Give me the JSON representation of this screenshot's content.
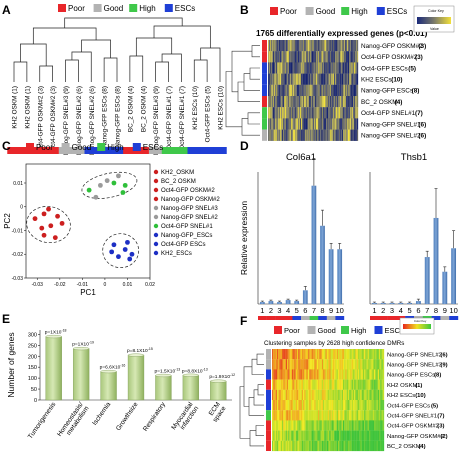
{
  "panels": {
    "A": {
      "letter": "A",
      "legend": [
        {
          "label": "Poor",
          "color": "#e8262a"
        },
        {
          "label": "Good",
          "color": "#b3b3b3"
        },
        {
          "label": "High",
          "color": "#3fc84a"
        },
        {
          "label": "ESCs",
          "color": "#1f3fd6"
        }
      ],
      "leaves": [
        "KH2 OSKM",
        "KH2 OSKM",
        "Oct4-GFP OSKM#2",
        "Oct4-GFP OSKM#2",
        "Nanog-GFP SNEL#3",
        "Nanog-GFP SNEL#2",
        "Nanog-GFP SNEL#2",
        "Nanog-GFP ESCs",
        "Nanog-GFP ESCs",
        "BC_2 OSKM",
        "BC_2 OSKM",
        "Nanog-GFP SNEL#3",
        "Oct4-GFP SNEL#1",
        "Oct4-GFP SNEL#1",
        "KH2 ESCs",
        "Oct4-GFP ESCs",
        "KH2 ESCs"
      ],
      "leaf_numbers": [
        "(1)",
        "(1)",
        "(3)",
        "(3)",
        "(9)",
        "(6)",
        "(6)",
        "(8)",
        "(8)",
        "(4)",
        "(4)",
        "(9)",
        "(7)",
        "(7)",
        "(10)",
        "(5)",
        "(10)"
      ],
      "bar_colors": [
        "#e8262a",
        "#e8262a",
        "#e8262a",
        "#e8262a",
        "#b3b3b3",
        "#b3b3b3",
        "#1f3fd6",
        "#1f3fd6",
        "#1f3fd6",
        "#e8262a",
        "#e8262a",
        "#b3b3b3",
        "#3fc84a",
        "#3fc84a",
        "#1f3fd6",
        "#1f3fd6",
        "#1f3fd6"
      ]
    },
    "B": {
      "letter": "B",
      "legend": [
        {
          "label": "Poor",
          "color": "#e8262a"
        },
        {
          "label": "Good",
          "color": "#b3b3b3"
        },
        {
          "label": "High",
          "color": "#3fc84a"
        },
        {
          "label": "ESCs",
          "color": "#1f3fd6"
        }
      ],
      "title": "1765 differentially expressed genes (p<0.01)",
      "colorkey_title": "Color Key",
      "colorkey_axis": "Value",
      "rows": [
        {
          "label": "Nanog-GFP OSKM#2",
          "num": "(3)",
          "color": "#e8262a"
        },
        {
          "label": "Oct4-GFP OSKM#2",
          "num": "(3)",
          "color": "#e8262a"
        },
        {
          "label": "Oct4-GFP ESCs",
          "num": "(5)",
          "color": "#1f3fd6"
        },
        {
          "label": "KH2 ESCs",
          "num": "(10)",
          "color": "#1f3fd6"
        },
        {
          "label": "Nanog-GFP ESCs",
          "num": "(8)",
          "color": "#1f3fd6"
        },
        {
          "label": "BC_2 OSKM",
          "num": "(4)",
          "color": "#e8262a"
        },
        {
          "label": "Oct4-GFP SNEL#1",
          "num": "(7)",
          "color": "#3fc84a"
        },
        {
          "label": "Nanog-GFP SNEL#1",
          "num": "(6)",
          "color": "#3fc84a"
        },
        {
          "label": "Nanog-GFP SNEL#2",
          "num": "(6)",
          "color": "#b3b3b3"
        }
      ]
    },
    "C": {
      "letter": "C",
      "legend": [
        {
          "label": "Poor",
          "color": "#e8262a"
        },
        {
          "label": "Good",
          "color": "#b3b3b3"
        },
        {
          "label": "High",
          "color": "#3fc84a"
        },
        {
          "label": "ESCs",
          "color": "#1f3fd6"
        }
      ],
      "key": [
        {
          "label": "KH2_OSKM",
          "color": "#cc1f1f"
        },
        {
          "label": "BC_2 OSKM",
          "color": "#cc1f1f"
        },
        {
          "label": "Oct4-GFP OSKM#2",
          "color": "#cc1f1f"
        },
        {
          "label": "Nanog-GFP OSKM#2",
          "color": "#cc1f1f"
        },
        {
          "label": "Nanog-GFP SNEL#3",
          "color": "#9a9a9a"
        },
        {
          "label": "Nanog-GFP SNEL#2",
          "color": "#9a9a9a"
        },
        {
          "label": "Oct4-GFP SNEL#1",
          "color": "#2fbf3a"
        },
        {
          "label": "Nanog-GFP_ESCs",
          "color": "#1d2fc4"
        },
        {
          "label": "Oct4-GFP ESCs",
          "color": "#1d2fc4"
        },
        {
          "label": "KH2_ESCs",
          "color": "#1d2fc4"
        }
      ]
    },
    "D": {
      "letter": "D",
      "legend": [
        {
          "label": "Poor",
          "color": "#e8262a"
        },
        {
          "label": "Good",
          "color": "#b3b3b3"
        },
        {
          "label": "High",
          "color": "#3fc84a"
        },
        {
          "label": "ESCs",
          "color": "#1f3fd6"
        }
      ],
      "category_colors": [
        "#e8262a",
        "#e8262a",
        "#e8262a",
        "#e8262a",
        "#1f3fd6",
        "#b3b3b3",
        "#3fc84a",
        "#1f3fd6",
        "#b3b3b3",
        "#1f3fd6"
      ]
    },
    "E": {
      "letter": "E",
      "legend": [
        {
          "label": "Poor",
          "color": "#e8262a"
        },
        {
          "label": "Good",
          "color": "#b3b3b3"
        },
        {
          "label": "High",
          "color": "#3fc84a"
        },
        {
          "label": "ESCs",
          "color": "#1f3fd6"
        }
      ]
    },
    "F": {
      "letter": "F",
      "legend": [
        {
          "label": "Poor",
          "color": "#e8262a"
        },
        {
          "label": "Good",
          "color": "#b3b3b3"
        },
        {
          "label": "High",
          "color": "#3fc84a"
        },
        {
          "label": "ESCs",
          "color": "#1f3fd6"
        }
      ],
      "title": "Clustering samples by 2628 high confidence DMRs",
      "colorkey_title": "Color Key",
      "rows": [
        {
          "label": "Nanog-GFP SNEL#2",
          "num": "(6)",
          "color": "#b3b3b3"
        },
        {
          "label": "Nanog-GFP SNEL#3",
          "num": "(9)",
          "color": "#b3b3b3"
        },
        {
          "label": "Nanog-GFP ESCs",
          "num": "(8)",
          "color": "#1f3fd6"
        },
        {
          "label": "KH2 OSKM",
          "num": "(1)",
          "color": "#e8262a"
        },
        {
          "label": "KH2 ESCs",
          "num": "(10)",
          "color": "#1f3fd6"
        },
        {
          "label": "Oct4-GFP ESCs",
          "num": "(5)",
          "color": "#1f3fd6"
        },
        {
          "label": "Oct4-GFP SNEL#1",
          "num": "(7)",
          "color": "#3fc84a"
        },
        {
          "label": "Oct4-GFP OSKM#2",
          "num": "(3)",
          "color": "#e8262a"
        },
        {
          "label": "Nanog-GFP OSKM#2",
          "num": "(2)",
          "color": "#e8262a"
        },
        {
          "label": "BC_2 OSKM",
          "num": "(4)",
          "color": "#e8262a"
        }
      ]
    }
  },
  "chart_data": [
    {
      "type": "scatter",
      "id": "C",
      "xlabel": "PC1",
      "ylabel": "PC2",
      "xlim": [
        -0.035,
        0.02
      ],
      "ylim": [
        -0.03,
        0.018
      ],
      "xticks": [
        "-0.03",
        "-0.02",
        "-0.01",
        "0",
        "0.01",
        "0.02"
      ],
      "yticks": [
        "-0.03",
        "-0.02",
        "-0.01",
        "0",
        "0.01"
      ],
      "series": [
        {
          "name": "Poor",
          "color": "#cc1f1f",
          "points": [
            [
              -0.031,
              -0.005
            ],
            [
              -0.027,
              -0.003
            ],
            [
              -0.025,
              -0.001
            ],
            [
              -0.024,
              -0.008
            ],
            [
              -0.027,
              -0.012
            ],
            [
              -0.022,
              -0.013
            ],
            [
              -0.019,
              -0.007
            ],
            [
              -0.021,
              -0.004
            ],
            [
              -0.028,
              -0.009
            ]
          ]
        },
        {
          "name": "Good",
          "color": "#9a9a9a",
          "points": [
            [
              -0.004,
              0.004
            ],
            [
              0.006,
              0.013
            ],
            [
              0.001,
              0.011
            ],
            [
              -0.002,
              0.009
            ]
          ]
        },
        {
          "name": "High",
          "color": "#2fbf3a",
          "points": [
            [
              -0.007,
              0.007
            ],
            [
              0.004,
              0.01
            ],
            [
              0.009,
              0.009
            ],
            [
              0.008,
              0.006
            ]
          ]
        },
        {
          "name": "ESCs",
          "color": "#1d2fc4",
          "points": [
            [
              0.003,
              -0.019
            ],
            [
              0.006,
              -0.021
            ],
            [
              0.009,
              -0.018
            ],
            [
              0.012,
              -0.02
            ],
            [
              0.004,
              -0.016
            ],
            [
              0.01,
              -0.015
            ],
            [
              0.011,
              -0.022
            ]
          ]
        }
      ]
    },
    {
      "type": "bar",
      "id": "D-Col6a1",
      "title": "Col6a1",
      "ylabel": "Relative expression",
      "categories": [
        "1",
        "2",
        "3",
        "4",
        "5",
        "6",
        "7",
        "8",
        "9",
        "10"
      ],
      "values": [
        2,
        3,
        2,
        4,
        3,
        14,
        121,
        80,
        56,
        56
      ],
      "errors": [
        1,
        1,
        1,
        1,
        1,
        4,
        28,
        16,
        6,
        6
      ],
      "ylim": [
        0,
        135
      ]
    },
    {
      "type": "bar",
      "id": "D-Thsb1",
      "title": "Thsb1",
      "categories": [
        "1",
        "2",
        "3",
        "4",
        "5",
        "6",
        "7",
        "8",
        "9",
        "10"
      ],
      "values": [
        1,
        1,
        1,
        1,
        1,
        3,
        48,
        88,
        33,
        57
      ],
      "errors": [
        1,
        1,
        1,
        1,
        1,
        2,
        6,
        30,
        5,
        18
      ],
      "ylim": [
        0,
        135
      ]
    },
    {
      "type": "bar",
      "id": "E",
      "ylabel": "Number of genes",
      "categories": [
        "Tumorigenesis",
        "Homeostasis/ metabolism",
        "Ischemia",
        "Growthsize",
        "Respiratory",
        "Myocardial infarction",
        "ECM space"
      ],
      "values": [
        290,
        235,
        130,
        205,
        112,
        113,
        86
      ],
      "annotations": [
        "p=1X10-18",
        "p=1X10-19",
        "p=6.6X10-16",
        "p=8.1X10-15",
        "p=1.5X10-13",
        "p=8.8X10-13",
        "p=1.9X10-12"
      ],
      "yticks": [
        "0",
        "50",
        "100",
        "150",
        "200",
        "250",
        "300"
      ],
      "ylim": [
        0,
        320
      ]
    }
  ]
}
